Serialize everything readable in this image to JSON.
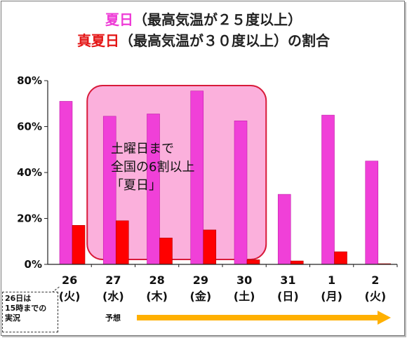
{
  "title": {
    "line1_highlight": "夏日",
    "line1_rest": "（最高気温が２５度以上）",
    "line2_highlight": "真夏日",
    "line2_rest": "（最高気温が３０度以上）の割合"
  },
  "annotation": {
    "lines": [
      "土曜日まで",
      "全国の6割以上",
      "「夏日」"
    ]
  },
  "note": {
    "lines": [
      "26日は",
      "15時までの",
      "実況"
    ]
  },
  "forecast_label": "予想",
  "colors": {
    "natsubi": "#f040d8",
    "manatsubi": "#ff0000",
    "highlight_fill": "#fbb0dc",
    "highlight_stroke": "#d81b3a",
    "arrow": "#ffb000"
  },
  "chart_data": {
    "type": "bar",
    "categories": [
      "26",
      "27",
      "28",
      "29",
      "30",
      "31",
      "1",
      "2"
    ],
    "weekdays": [
      "(火)",
      "(水)",
      "(木)",
      "(金)",
      "(土)",
      "(日)",
      "(月)",
      "(火)"
    ],
    "series": [
      {
        "values": [
          71,
          64.5,
          65.5,
          75.5,
          62.5,
          30.5,
          65,
          45
        ]
      },
      {
        "values": [
          17,
          19,
          11.5,
          15,
          2,
          1.5,
          5.5,
          0.3
        ]
      }
    ],
    "ylim": [
      0,
      80
    ],
    "yticks": [
      0,
      20,
      40,
      60,
      80
    ],
    "ytick_labels": [
      "0%",
      "20%",
      "40%",
      "60%",
      "80%"
    ],
    "grid": false,
    "highlight_categories": [
      "27",
      "28",
      "29",
      "30"
    ]
  }
}
